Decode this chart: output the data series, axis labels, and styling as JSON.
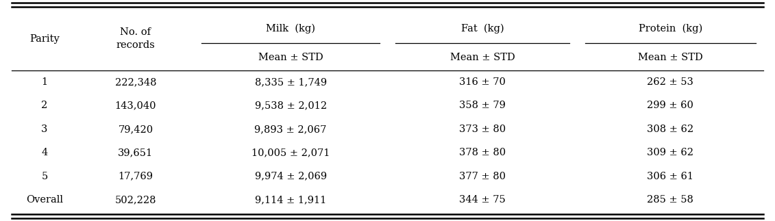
{
  "parity": [
    "1",
    "2",
    "3",
    "4",
    "5",
    "Overall"
  ],
  "no_records": [
    "222,348",
    "143,040",
    "79,420",
    "39,651",
    "17,769",
    "502,228"
  ],
  "milk": [
    "8,335 ± 1,749",
    "9,538 ± 2,012",
    "9,893 ± 2,067",
    "10,005 ± 2,071",
    "9,974 ± 2,069",
    "9,114 ± 1,911"
  ],
  "fat": [
    "316 ± 70",
    "358 ± 79",
    "373 ± 80",
    "378 ± 80",
    "377 ± 80",
    "344 ± 75"
  ],
  "protein": [
    "262 ± 53",
    "299 ± 60",
    "308 ± 62",
    "309 ± 62",
    "306 ± 61",
    "285 ± 58"
  ],
  "group_labels": [
    "Milk  (kg)",
    "Fat  (kg)",
    "Protein  (kg)"
  ],
  "sub_header": "Mean ± STD",
  "col0_header": "Parity",
  "col1_header": "No. of\nrecords",
  "background_color": "#ffffff",
  "line_color": "#000000",
  "text_color": "#000000",
  "font_size": 10.5,
  "figwidth": 11.31,
  "figheight": 3.23,
  "dpi": 100
}
